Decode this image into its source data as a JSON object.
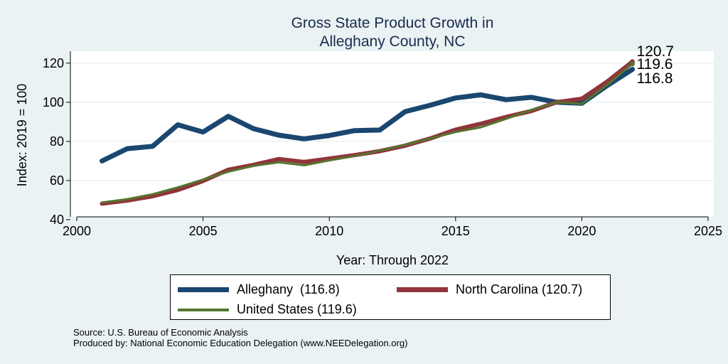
{
  "chart_data": {
    "type": "line",
    "title_lines": [
      "Gross State Product Growth in",
      "Alleghany County, NC"
    ],
    "xlabel": "Year: Through 2022",
    "ylabel": "Index: 2019 = 100",
    "xlim": [
      2000,
      2025
    ],
    "ylim": [
      40,
      125
    ],
    "xticks": [
      2000,
      2005,
      2010,
      2015,
      2020,
      2025
    ],
    "yticks": [
      40,
      60,
      80,
      100,
      120
    ],
    "grid": true,
    "x": [
      2001,
      2002,
      2003,
      2004,
      2005,
      2006,
      2007,
      2008,
      2009,
      2010,
      2011,
      2012,
      2013,
      2014,
      2015,
      2016,
      2017,
      2018,
      2019,
      2020,
      2021,
      2022
    ],
    "series": [
      {
        "name": "Alleghany",
        "legend_label": "Alleghany  (116.8)",
        "end_label": "116.8",
        "color": "#1a476f",
        "values": [
          70,
          76.3,
          77.5,
          88.5,
          84.8,
          92.8,
          86.5,
          83.2,
          81.3,
          83,
          85.5,
          85.8,
          95.2,
          98.5,
          102.2,
          103.8,
          101.3,
          102.5,
          100,
          99.5,
          108.5,
          116.8
        ]
      },
      {
        "name": "North Carolina",
        "legend_label": "North Carolina (120.7)",
        "end_label": "120.7",
        "color": "#90353b",
        "values": [
          48.2,
          49.8,
          52,
          55.2,
          59.8,
          65.5,
          68,
          71,
          69.5,
          71.2,
          73,
          75,
          77.8,
          81.5,
          86,
          89,
          92.5,
          95.5,
          100,
          101.8,
          110.5,
          120.7
        ]
      },
      {
        "name": "United States",
        "legend_label": "United States (119.6)",
        "end_label": "119.6",
        "color": "#55752f",
        "values": [
          48.8,
          50.5,
          53,
          56.5,
          60.5,
          64.5,
          67.5,
          69.3,
          67.8,
          70.3,
          72.5,
          75.3,
          78.2,
          81.5,
          84.8,
          87.2,
          91.5,
          96,
          100,
          99.2,
          108.8,
          119.6
        ]
      }
    ]
  },
  "source": {
    "line1": "Source: U.S. Bureau of Economic Analysis",
    "line2": "Produced by: National Economic Education Delegation (www.NEEDelegation.org)"
  }
}
